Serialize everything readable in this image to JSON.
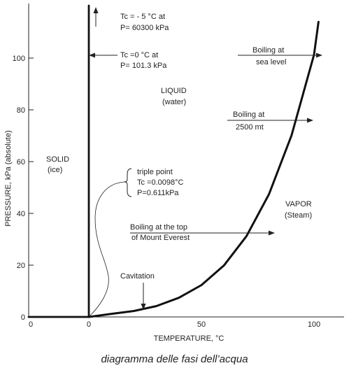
{
  "chart_data": {
    "type": "line",
    "xlabel": "TEMPERATURE, °C",
    "ylabel": "PRESSURE, kPa (absolute)",
    "xlim": [
      -10,
      110
    ],
    "ylim": [
      0,
      120
    ],
    "x_ticks": [
      "0",
      "0",
      "50",
      "100"
    ],
    "y_ticks": [
      "0",
      "20",
      "40",
      "60",
      "80",
      "100"
    ],
    "series": [
      {
        "values": [
          [
            0,
            0
          ],
          [
            10,
            1.2
          ],
          [
            20,
            2.3
          ],
          [
            30,
            4.2
          ],
          [
            40,
            7.4
          ],
          [
            50,
            12.3
          ],
          [
            60,
            19.9
          ],
          [
            70,
            31.2
          ],
          [
            80,
            47.4
          ],
          [
            90,
            70.1
          ],
          [
            100,
            101.3
          ],
          [
            102,
            114
          ]
        ]
      },
      {
        "values": [
          [
            -25,
            0
          ],
          [
            0,
            0
          ]
        ]
      },
      {
        "values": [
          [
            0,
            0
          ],
          [
            0,
            120
          ]
        ]
      }
    ],
    "regions": [
      {
        "label": "SOLID",
        "sublabel": "(ice)"
      },
      {
        "label": "LIQUID",
        "sublabel": "(water)"
      },
      {
        "label": "VAPOR",
        "sublabel": "(Steam)"
      }
    ],
    "annotations": {
      "tc_minus5_line1": "Tc = - 5 °C at",
      "tc_minus5_line2": "P= 60300 kPa",
      "tc0_line1": "Tc =0 °C at",
      "tc0_line2": "P= 101.3 kPa",
      "boiling_sea_line1": "Boiling at",
      "boiling_sea_line2": "sea level",
      "boiling_2500_line1": "Boiling at",
      "boiling_2500_line2": "2500 mt",
      "triple_line1": "triple point",
      "triple_line2": "Tc =0.0098°C",
      "triple_line3": "P=0.611kPa",
      "everest_line1": "Boiling at the top",
      "everest_line2": "of Mount Everest",
      "cavitation": "Cavitation"
    }
  },
  "caption": "diagramma delle fasi dell’acqua"
}
